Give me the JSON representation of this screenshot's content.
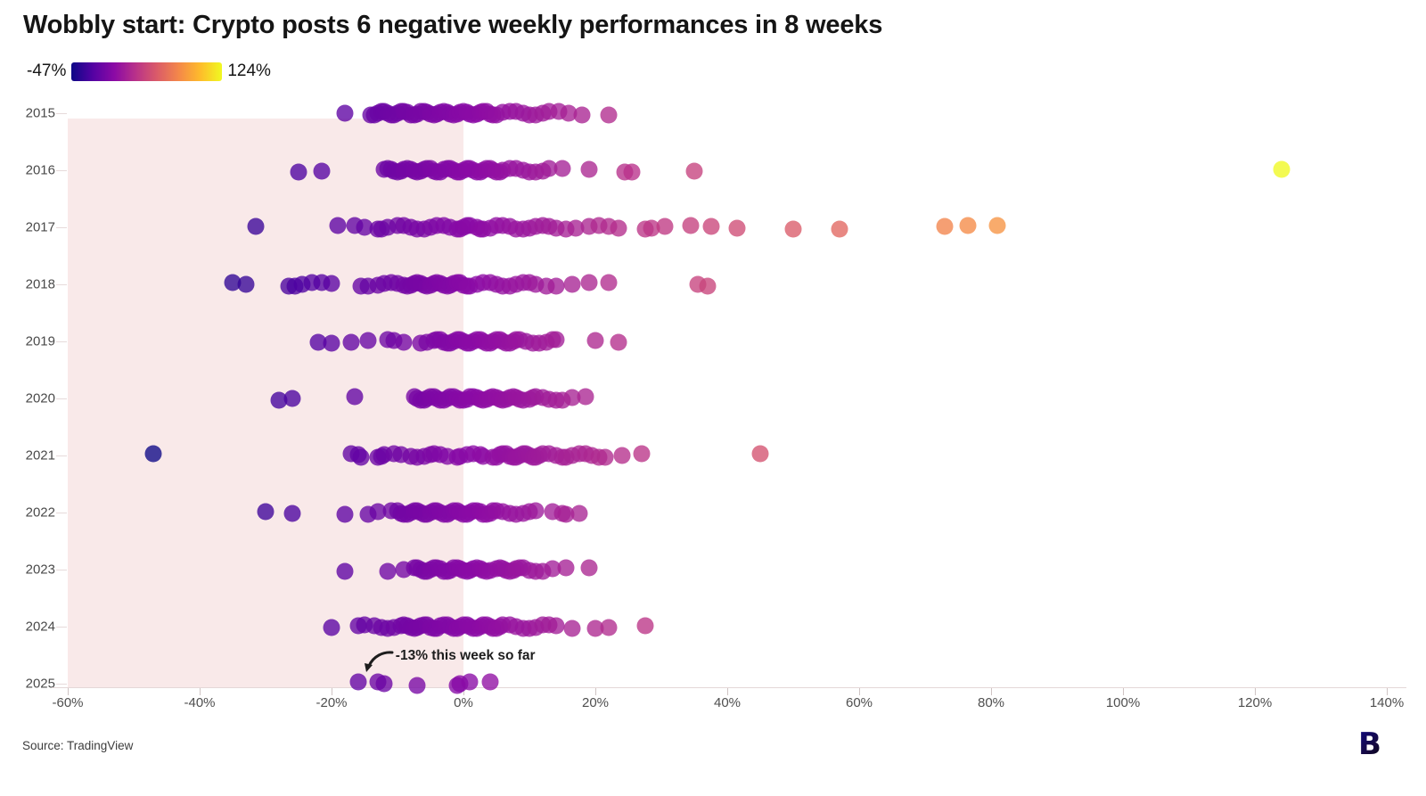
{
  "title": "Wobbly start: Crypto posts 6 negative weekly performances in 8 weeks",
  "legend": {
    "min_label": "-47%",
    "max_label": "124%"
  },
  "annotation": {
    "text": "-13% this week so far",
    "target_year": "2025",
    "target_value": -13
  },
  "source": "Source: TradingView",
  "logo_letter": "B",
  "colors": {
    "shade": "#f9e9e9",
    "axis_line": "#e4d8d8",
    "tick": "#cfc4c4",
    "tick_label": "#4f4f4f",
    "year_label": "#4a4a4a",
    "plasma_stops": [
      "#0d0887",
      "#5402a3",
      "#8b0aa5",
      "#b93289",
      "#db5c68",
      "#f48849",
      "#febc2b",
      "#f0f921"
    ]
  },
  "chart_data": {
    "type": "scatter",
    "subtype": "strip-plot of weekly % returns per year, colored by value (plasma)",
    "title": "Wobbly start: Crypto posts 6 negative weekly performances in 8 weeks",
    "xlabel": "",
    "ylabel": "",
    "x_axis": {
      "min": -60,
      "max": 140,
      "tick_values": [
        -60,
        -40,
        -20,
        0,
        20,
        40,
        60,
        80,
        100,
        120,
        140
      ],
      "tick_labels": [
        "-60%",
        "-40%",
        "-20%",
        "0%",
        "20%",
        "40%",
        "60%",
        "80%",
        "100%",
        "120%",
        "140%"
      ]
    },
    "negative_region": {
      "from": -60,
      "to": 0
    },
    "color_scale": {
      "min": -47,
      "max": 124,
      "palette": "plasma",
      "min_label": "-47%",
      "max_label": "124%"
    },
    "y_categories": [
      "2015",
      "2016",
      "2017",
      "2018",
      "2019",
      "2020",
      "2021",
      "2022",
      "2023",
      "2024",
      "2025"
    ],
    "series": [
      {
        "year": "2015",
        "values": [
          -18,
          -14,
          -13.5,
          -13,
          -12.5,
          -12,
          -11.5,
          -11,
          -10.5,
          -10,
          -9.5,
          -9,
          -8.5,
          -8,
          -7.5,
          -7,
          -6.5,
          -6,
          -5.5,
          -5,
          -4.5,
          -4,
          -3.5,
          -3,
          -2.5,
          -2,
          -1.5,
          -1,
          -0.5,
          0,
          0.5,
          1,
          1.5,
          2,
          2.5,
          3,
          3.5,
          4,
          4.5,
          5,
          6,
          7,
          8,
          9,
          10,
          11,
          12,
          13,
          14.5,
          16,
          18,
          22
        ]
      },
      {
        "year": "2016",
        "values": [
          -25,
          -21.5,
          -12,
          -11.5,
          -11,
          -10.5,
          -10,
          -9.5,
          -9,
          -8.5,
          -8,
          -7.5,
          -7,
          -6.5,
          -6,
          -5.5,
          -5,
          -4.5,
          -4,
          -3.5,
          -3,
          -2.5,
          -2,
          -1.5,
          -1,
          -0.5,
          0,
          0.5,
          1,
          1.5,
          2,
          2.5,
          3,
          3.5,
          4,
          4.5,
          5,
          5.5,
          6,
          7,
          8,
          9,
          10,
          11,
          12,
          13,
          15,
          19,
          24.5,
          25.5,
          35,
          124
        ]
      },
      {
        "year": "2017",
        "values": [
          -31.5,
          -19,
          -16.5,
          -15,
          -13,
          -12.5,
          -11.5,
          -10,
          -9,
          -8,
          -7,
          -6,
          -5,
          -4,
          -3,
          -2,
          -1,
          -0.5,
          0,
          0.5,
          1,
          2,
          2.5,
          3,
          4,
          5,
          6,
          7,
          8,
          9,
          10,
          11,
          12,
          13,
          14,
          15.5,
          17,
          19,
          20.5,
          22,
          23.5,
          27.5,
          28.5,
          30.5,
          34.5,
          37.5,
          41.5,
          50,
          57,
          73,
          76.5,
          81
        ]
      },
      {
        "year": "2018",
        "values": [
          -35,
          -33,
          -26.5,
          -25.5,
          -24.5,
          -23,
          -21.5,
          -20,
          -15.5,
          -14.5,
          -13,
          -12,
          -11,
          -10,
          -9,
          -8.5,
          -8,
          -7.5,
          -7,
          -6.5,
          -6,
          -5.5,
          -5,
          -4.5,
          -4,
          -3.5,
          -3,
          -2.5,
          -2,
          -1.5,
          -1,
          -0.5,
          0,
          0.5,
          1,
          2,
          3,
          4,
          5,
          6,
          7,
          8,
          9,
          10,
          11,
          12.5,
          14,
          16.5,
          19,
          22,
          35.5,
          37
        ]
      },
      {
        "year": "2019",
        "values": [
          -22,
          -20,
          -17,
          -14.5,
          -11.5,
          -10.5,
          -9,
          -6.5,
          -5.5,
          -4.5,
          -4,
          -3.5,
          -3,
          -2.5,
          -2,
          -1.5,
          -1,
          -0.5,
          0,
          0.5,
          1,
          1.5,
          2,
          2.5,
          3,
          3.5,
          4,
          4.5,
          5,
          5.5,
          6,
          6.5,
          7,
          7.5,
          8,
          8.5,
          9.5,
          10.5,
          11.5,
          12.5,
          13.5,
          14,
          20,
          23.5
        ]
      },
      {
        "year": "2020",
        "values": [
          -28,
          -26,
          -16.5,
          -7.5,
          -7,
          -6.5,
          -6,
          -5.5,
          -5,
          -4.5,
          -4,
          -3.5,
          -3,
          -2.5,
          -2,
          -1.5,
          -1,
          -0.5,
          0,
          0.5,
          1,
          1.5,
          2,
          2.5,
          3,
          3.5,
          4,
          4.5,
          5,
          5.5,
          6,
          6.5,
          7,
          7.5,
          8,
          8.5,
          9,
          10,
          10.5,
          11,
          12,
          13,
          14,
          15,
          16.5,
          18.5
        ]
      },
      {
        "year": "2021",
        "values": [
          -47,
          -17,
          -16,
          -15.5,
          -13,
          -12.5,
          -12,
          -10.5,
          -9.5,
          -8,
          -7,
          -6,
          -5,
          -4.5,
          -3.5,
          -2.5,
          -1,
          -0.5,
          0.5,
          1.5,
          2.5,
          3,
          4.5,
          5,
          5.5,
          6,
          6.5,
          7,
          7.5,
          8,
          8.5,
          9,
          9.5,
          10,
          10.5,
          11,
          11.5,
          12,
          13,
          14,
          15,
          15.5,
          16.5,
          17.5,
          18.5,
          19.5,
          20.5,
          21.5,
          24,
          27,
          45
        ]
      },
      {
        "year": "2022",
        "values": [
          -30,
          -26,
          -18,
          -14.5,
          -13,
          -11,
          -10,
          -9.5,
          -9,
          -8.5,
          -8,
          -7.5,
          -7,
          -6.5,
          -6,
          -5.5,
          -5,
          -4.5,
          -4,
          -3.5,
          -3,
          -2.5,
          -2,
          -1.5,
          -1,
          -0.5,
          0,
          0.5,
          1,
          1.5,
          2,
          2.5,
          3,
          3.5,
          4,
          4.5,
          5,
          6,
          7,
          8,
          9,
          10,
          11,
          13.5,
          15,
          15.5,
          17.5
        ]
      },
      {
        "year": "2023",
        "values": [
          -18,
          -11.5,
          -9,
          -7.5,
          -7,
          -6.5,
          -6,
          -5.5,
          -5,
          -4.5,
          -4,
          -3.5,
          -3,
          -2.5,
          -2,
          -1.5,
          -1,
          -0.5,
          0,
          0.5,
          1,
          1.5,
          2,
          2.5,
          3,
          3.5,
          4,
          5,
          5.5,
          6,
          6.5,
          7,
          7.5,
          8,
          8.5,
          9,
          10,
          11,
          12,
          13.5,
          15.5,
          19
        ]
      },
      {
        "year": "2024",
        "values": [
          -20,
          -16,
          -15,
          -13.5,
          -12.5,
          -11.5,
          -10.5,
          -9.5,
          -9,
          -8.5,
          -8,
          -7.5,
          -7,
          -6.5,
          -6,
          -5.5,
          -5,
          -4.5,
          -4,
          -3.5,
          -3,
          -2.5,
          -2,
          -1.5,
          -1,
          -0.5,
          0,
          0.5,
          1,
          1.5,
          2,
          2.5,
          3,
          3.5,
          4,
          4.5,
          5,
          5.5,
          6,
          7,
          8,
          9,
          10,
          11,
          12,
          13,
          14,
          16.5,
          20,
          22,
          27.5
        ]
      },
      {
        "year": "2025",
        "values": [
          -16,
          -13,
          -12,
          -7,
          -1,
          -0.5,
          1,
          4
        ]
      }
    ]
  }
}
